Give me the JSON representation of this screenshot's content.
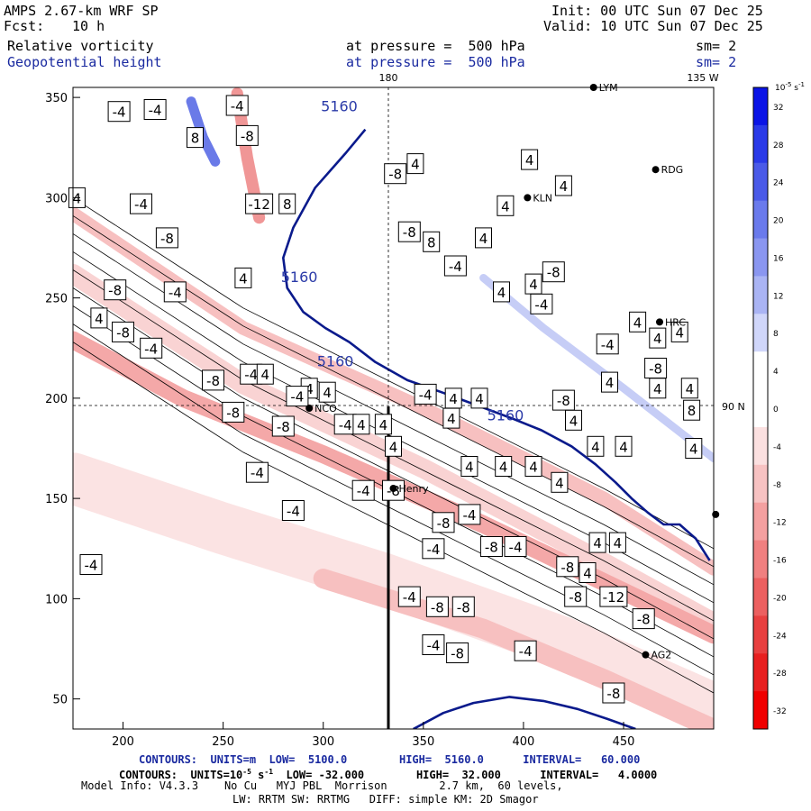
{
  "header": {
    "model": "AMPS 2.67-km WRF SP",
    "init": "Init: 00 UTC Sun 07 Dec 25",
    "fcst_label": "Fcst:",
    "fcst_value": "10 h",
    "valid": "Valid: 10 UTC Sun 07 Dec 25",
    "field1_name": "Relative vorticity",
    "field1_level": "at pressure =  500 hPa",
    "field1_sm": "sm= 2",
    "field2_name": "Geopotential height",
    "field2_level": "at pressure =  500 hPa",
    "field2_sm": "sm= 2"
  },
  "map_labels": {
    "lon_180": "180",
    "lon_135w": "135 W",
    "lat_90n": "90 N"
  },
  "stations": [
    {
      "name": "LYM",
      "x": 435,
      "y": 355
    },
    {
      "name": "RDG",
      "x": 466,
      "y": 314
    },
    {
      "name": "KLN",
      "x": 402,
      "y": 300
    },
    {
      "name": "HRC",
      "x": 468,
      "y": 238
    },
    {
      "name": "NCO",
      "x": 293,
      "y": 195
    },
    {
      "name": "Henry",
      "x": 335,
      "y": 155
    },
    {
      "name": "AG2",
      "x": 461,
      "y": 72
    },
    {
      "name": "",
      "x": 496,
      "y": 142
    }
  ],
  "footer": {
    "line1": "CONTOURS:  UNITS=m  LOW=  5100.0        HIGH=  5160.0      INTERVAL=   60.000",
    "line2_prefix": "CONTOURS:  UNITS=10",
    "line2_exp": "-5",
    "line2_suffix": " s",
    "line2_exp2": "-1",
    "line2_rest": "  LOW= -32.000        HIGH=  32.000      INTERVAL=   4.0000",
    "line3": "Model Info: V4.3.3    No Cu   MYJ PBL  Morrison        2.7 km,  60 levels,",
    "line4": "LW: RRTM SW: RRTMG   DIFF: simple KM: 2D Smagor"
  },
  "colorbar": {
    "unit_base": "10",
    "unit_exp1": "-5",
    "unit_s": " s",
    "unit_exp2": "-1",
    "labels": [
      "32",
      "28",
      "24",
      "20",
      "16",
      "12",
      "8",
      "4",
      "0",
      "-4",
      "-8",
      "-12",
      "-16",
      "-20",
      "-24",
      "-28",
      "-32"
    ],
    "colors": [
      "#0a14e6",
      "#2a3ae8",
      "#4a5ae8",
      "#6a7aec",
      "#8a96f0",
      "#aab4f4",
      "#d0d6fa",
      "#ffffff",
      "#ffffff",
      "#fbe0e0",
      "#f7c2c2",
      "#f4a0a0",
      "#f08080",
      "#ec6060",
      "#e84040",
      "#e82020",
      "#f00000"
    ]
  },
  "chart_data": {
    "type": "contour-map",
    "title": "Relative vorticity and Geopotential height at 500 hPa",
    "xlim": [
      175,
      495
    ],
    "ylim": [
      35,
      355
    ],
    "x_ticks": [
      200,
      250,
      300,
      350,
      400,
      450
    ],
    "y_ticks": [
      50,
      100,
      150,
      200,
      250,
      300,
      350
    ],
    "height_contours": [
      {
        "value": "5160",
        "points": [
          [
            321,
            334
          ],
          [
            311,
            322
          ],
          [
            296,
            305
          ],
          [
            285,
            285
          ],
          [
            280,
            270
          ],
          [
            282,
            255
          ],
          [
            290,
            243
          ],
          [
            301,
            235
          ],
          [
            313,
            228
          ],
          [
            326,
            218
          ],
          [
            342,
            209
          ],
          [
            359,
            203
          ],
          [
            378,
            196
          ],
          [
            394,
            190
          ],
          [
            409,
            184
          ],
          [
            424,
            176
          ],
          [
            436,
            167
          ],
          [
            446,
            158
          ],
          [
            454,
            150
          ],
          [
            462,
            143
          ],
          [
            470,
            137
          ],
          [
            478,
            137
          ],
          [
            486,
            130
          ],
          [
            493,
            119
          ]
        ]
      },
      {
        "value": "5100",
        "points": [
          [
            345,
            35
          ],
          [
            360,
            43
          ],
          [
            375,
            48
          ],
          [
            393,
            51
          ],
          [
            410,
            49
          ],
          [
            427,
            45
          ],
          [
            442,
            40
          ],
          [
            456,
            35
          ]
        ]
      }
    ],
    "height_labels": [
      {
        "text": "5160",
        "x": 308,
        "y": 343
      },
      {
        "text": "5160",
        "x": 288,
        "y": 258
      },
      {
        "text": "5160",
        "x": 306,
        "y": 216
      },
      {
        "text": "5160",
        "x": 391,
        "y": 189
      }
    ],
    "vorticity_labels": [
      {
        "text": "-4",
        "x": 198,
        "y": 343
      },
      {
        "text": "-4",
        "x": 216,
        "y": 344
      },
      {
        "text": "-4",
        "x": 257,
        "y": 346
      },
      {
        "text": "8",
        "x": 236,
        "y": 330
      },
      {
        "text": "-8",
        "x": 262,
        "y": 331
      },
      {
        "text": "4",
        "x": 177,
        "y": 300
      },
      {
        "text": "-4",
        "x": 209,
        "y": 297
      },
      {
        "text": "-12",
        "x": 268,
        "y": 297
      },
      {
        "text": "8",
        "x": 282,
        "y": 297
      },
      {
        "text": "-8",
        "x": 222,
        "y": 280
      },
      {
        "text": "4",
        "x": 260,
        "y": 260
      },
      {
        "text": "-4",
        "x": 226,
        "y": 253
      },
      {
        "text": "-8",
        "x": 196,
        "y": 254
      },
      {
        "text": "4",
        "x": 188,
        "y": 240
      },
      {
        "text": "-8",
        "x": 200,
        "y": 233
      },
      {
        "text": "-4",
        "x": 214,
        "y": 225
      },
      {
        "text": "4",
        "x": 346,
        "y": 317
      },
      {
        "text": "-8",
        "x": 336,
        "y": 312
      },
      {
        "text": "4",
        "x": 403,
        "y": 319
      },
      {
        "text": "4",
        "x": 420,
        "y": 306
      },
      {
        "text": "4",
        "x": 391,
        "y": 296
      },
      {
        "text": "8",
        "x": 354,
        "y": 278
      },
      {
        "text": "-8",
        "x": 343,
        "y": 283
      },
      {
        "text": "-4",
        "x": 366,
        "y": 266
      },
      {
        "text": "4",
        "x": 380,
        "y": 280
      },
      {
        "text": "-8",
        "x": 415,
        "y": 263
      },
      {
        "text": "4",
        "x": 405,
        "y": 257
      },
      {
        "text": "-4",
        "x": 409,
        "y": 247
      },
      {
        "text": "4",
        "x": 389,
        "y": 253
      },
      {
        "text": "4",
        "x": 457,
        "y": 238
      },
      {
        "text": "4",
        "x": 478,
        "y": 233
      },
      {
        "text": "4",
        "x": 467,
        "y": 230
      },
      {
        "text": "-4",
        "x": 442,
        "y": 227
      },
      {
        "text": "4",
        "x": 443,
        "y": 208
      },
      {
        "text": "-8",
        "x": 466,
        "y": 215
      },
      {
        "text": "4",
        "x": 467,
        "y": 205
      },
      {
        "text": "4",
        "x": 483,
        "y": 205
      },
      {
        "text": "8",
        "x": 484,
        "y": 194
      },
      {
        "text": "4",
        "x": 485,
        "y": 175
      },
      {
        "text": "-8",
        "x": 245,
        "y": 209
      },
      {
        "text": "-4",
        "x": 264,
        "y": 212
      },
      {
        "text": "4",
        "x": 271,
        "y": 212
      },
      {
        "text": "4",
        "x": 293,
        "y": 205
      },
      {
        "text": "4",
        "x": 302,
        "y": 203
      },
      {
        "text": "-4",
        "x": 287,
        "y": 201
      },
      {
        "text": "-8",
        "x": 255,
        "y": 193
      },
      {
        "text": "-8",
        "x": 280,
        "y": 186
      },
      {
        "text": "-4",
        "x": 311,
        "y": 187
      },
      {
        "text": "4",
        "x": 319,
        "y": 187
      },
      {
        "text": "4",
        "x": 330,
        "y": 187
      },
      {
        "text": "-4",
        "x": 351,
        "y": 202
      },
      {
        "text": "4",
        "x": 365,
        "y": 200
      },
      {
        "text": "4",
        "x": 364,
        "y": 190
      },
      {
        "text": "4",
        "x": 378,
        "y": 200
      },
      {
        "text": "-8",
        "x": 420,
        "y": 199
      },
      {
        "text": "4",
        "x": 425,
        "y": 189
      },
      {
        "text": "4",
        "x": 436,
        "y": 176
      },
      {
        "text": "4",
        "x": 450,
        "y": 176
      },
      {
        "text": "4",
        "x": 335,
        "y": 176
      },
      {
        "text": "4",
        "x": 373,
        "y": 166
      },
      {
        "text": "4",
        "x": 390,
        "y": 166
      },
      {
        "text": "4",
        "x": 405,
        "y": 166
      },
      {
        "text": "4",
        "x": 418,
        "y": 158
      },
      {
        "text": "-4",
        "x": 267,
        "y": 163
      },
      {
        "text": "-4",
        "x": 320,
        "y": 154
      },
      {
        "text": "-8",
        "x": 335,
        "y": 154
      },
      {
        "text": "-4",
        "x": 285,
        "y": 144
      },
      {
        "text": "-4",
        "x": 373,
        "y": 142
      },
      {
        "text": "-8",
        "x": 360,
        "y": 138
      },
      {
        "text": "-4",
        "x": 184,
        "y": 117
      },
      {
        "text": "-4",
        "x": 355,
        "y": 125
      },
      {
        "text": "-8",
        "x": 384,
        "y": 126
      },
      {
        "text": "-4",
        "x": 396,
        "y": 126
      },
      {
        "text": "4",
        "x": 437,
        "y": 128
      },
      {
        "text": "4",
        "x": 447,
        "y": 128
      },
      {
        "text": "4",
        "x": 432,
        "y": 113
      },
      {
        "text": "-8",
        "x": 422,
        "y": 116
      },
      {
        "text": "-8",
        "x": 426,
        "y": 101
      },
      {
        "text": "-12",
        "x": 445,
        "y": 101
      },
      {
        "text": "-4",
        "x": 343,
        "y": 101
      },
      {
        "text": "-8",
        "x": 357,
        "y": 96
      },
      {
        "text": "-8",
        "x": 370,
        "y": 96
      },
      {
        "text": "-8",
        "x": 460,
        "y": 90
      },
      {
        "text": "-4",
        "x": 355,
        "y": 77
      },
      {
        "text": "-8",
        "x": 367,
        "y": 73
      },
      {
        "text": "-4",
        "x": 401,
        "y": 74
      },
      {
        "text": "-8",
        "x": 445,
        "y": 53
      }
    ]
  }
}
